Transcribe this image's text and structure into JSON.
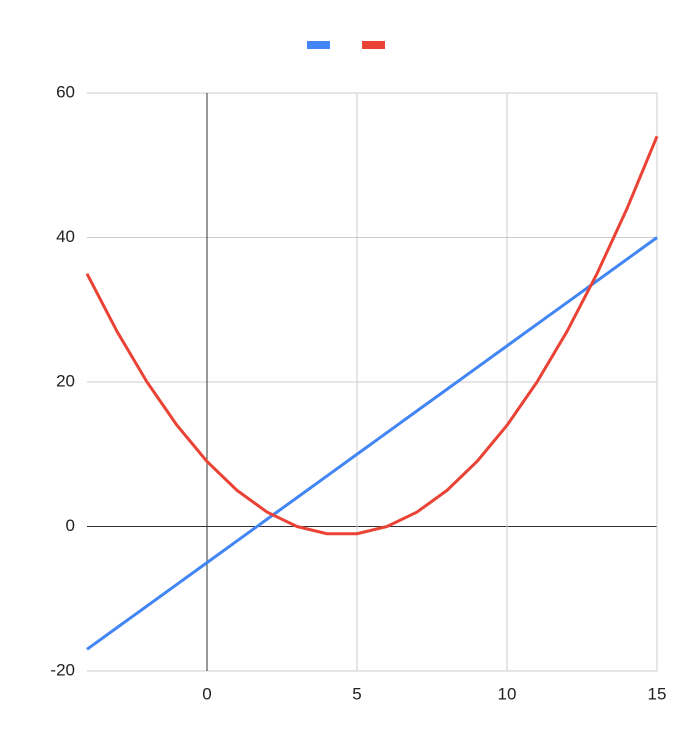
{
  "chart_data": {
    "type": "line",
    "x": [
      -4,
      -3,
      -2,
      -1,
      0,
      1,
      2,
      3,
      4,
      5,
      6,
      7,
      8,
      9,
      10,
      11,
      12,
      13,
      14,
      15
    ],
    "series": [
      {
        "color": "#4285f4",
        "values": [
          -17,
          -14,
          -11,
          -8,
          -5,
          -2,
          1,
          4,
          7,
          10,
          13,
          16,
          19,
          22,
          25,
          28,
          31,
          34,
          37,
          40
        ]
      },
      {
        "color": "#ea4335",
        "values": [
          35,
          27,
          20,
          14,
          9,
          5,
          2,
          0,
          -1,
          -1,
          0,
          2,
          5,
          9,
          14,
          20,
          27,
          35,
          44,
          54
        ]
      }
    ],
    "xlim": [
      -4,
      15
    ],
    "xticks": [
      0,
      5,
      10,
      15
    ],
    "ylim": [
      -20,
      60
    ],
    "yticks": [
      -20,
      0,
      20,
      40,
      60
    ],
    "grid": true,
    "legend": "top"
  }
}
